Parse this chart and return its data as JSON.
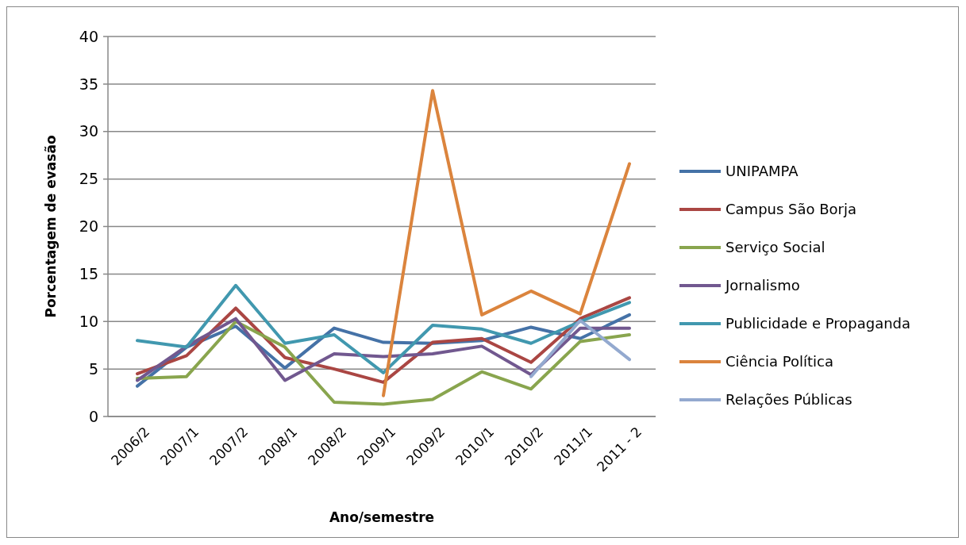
{
  "chart_data": {
    "type": "line",
    "xlabel": "Ano/semestre",
    "ylabel": "Porcentagem de evasão",
    "categories": [
      "2006/2",
      "2007/1",
      "2007/2",
      "2008/1",
      "2008/2",
      "2009/1",
      "2009/2",
      "2010/1",
      "2010/2",
      "2011/1",
      "2011 - 2"
    ],
    "series": [
      {
        "name": "UNIPAMPA",
        "color": "#4572a7",
        "values": [
          3.2,
          7.3,
          9.5,
          5.1,
          9.3,
          7.8,
          7.7,
          8.0,
          9.4,
          8.2,
          10.7
        ]
      },
      {
        "name": "Campus São Borja",
        "color": "#aa4643",
        "values": [
          4.5,
          6.4,
          11.4,
          6.2,
          5.0,
          3.6,
          7.8,
          8.2,
          5.7,
          10.3,
          12.5
        ]
      },
      {
        "name": "Serviço Social",
        "color": "#89a54e",
        "values": [
          4.0,
          4.2,
          10.0,
          7.3,
          1.5,
          1.3,
          1.8,
          4.7,
          2.9,
          7.9,
          8.6
        ]
      },
      {
        "name": "Jornalismo",
        "color": "#71588f",
        "values": [
          3.8,
          7.4,
          10.3,
          3.8,
          6.6,
          6.3,
          6.6,
          7.4,
          4.4,
          9.3,
          9.3
        ]
      },
      {
        "name": "Publicidade e Propaganda",
        "color": "#4198af",
        "values": [
          8.0,
          7.3,
          13.8,
          7.7,
          8.6,
          4.6,
          9.6,
          9.2,
          7.7,
          10.0,
          12.0
        ]
      },
      {
        "name": "Ciência Política",
        "color": "#db843d",
        "values": [
          null,
          null,
          null,
          null,
          null,
          2.2,
          34.3,
          10.7,
          13.2,
          10.8,
          26.6
        ]
      },
      {
        "name": "Relações Públicas",
        "color": "#93a9cf",
        "values": [
          null,
          null,
          null,
          null,
          null,
          null,
          null,
          null,
          4.2,
          10.1,
          6.0
        ]
      }
    ],
    "ylim": [
      0,
      40
    ],
    "yticks": [
      0,
      5,
      10,
      15,
      20,
      25,
      30,
      35,
      40
    ],
    "grid": "y",
    "legend": "right",
    "marker": "none",
    "line_style": "solid"
  }
}
